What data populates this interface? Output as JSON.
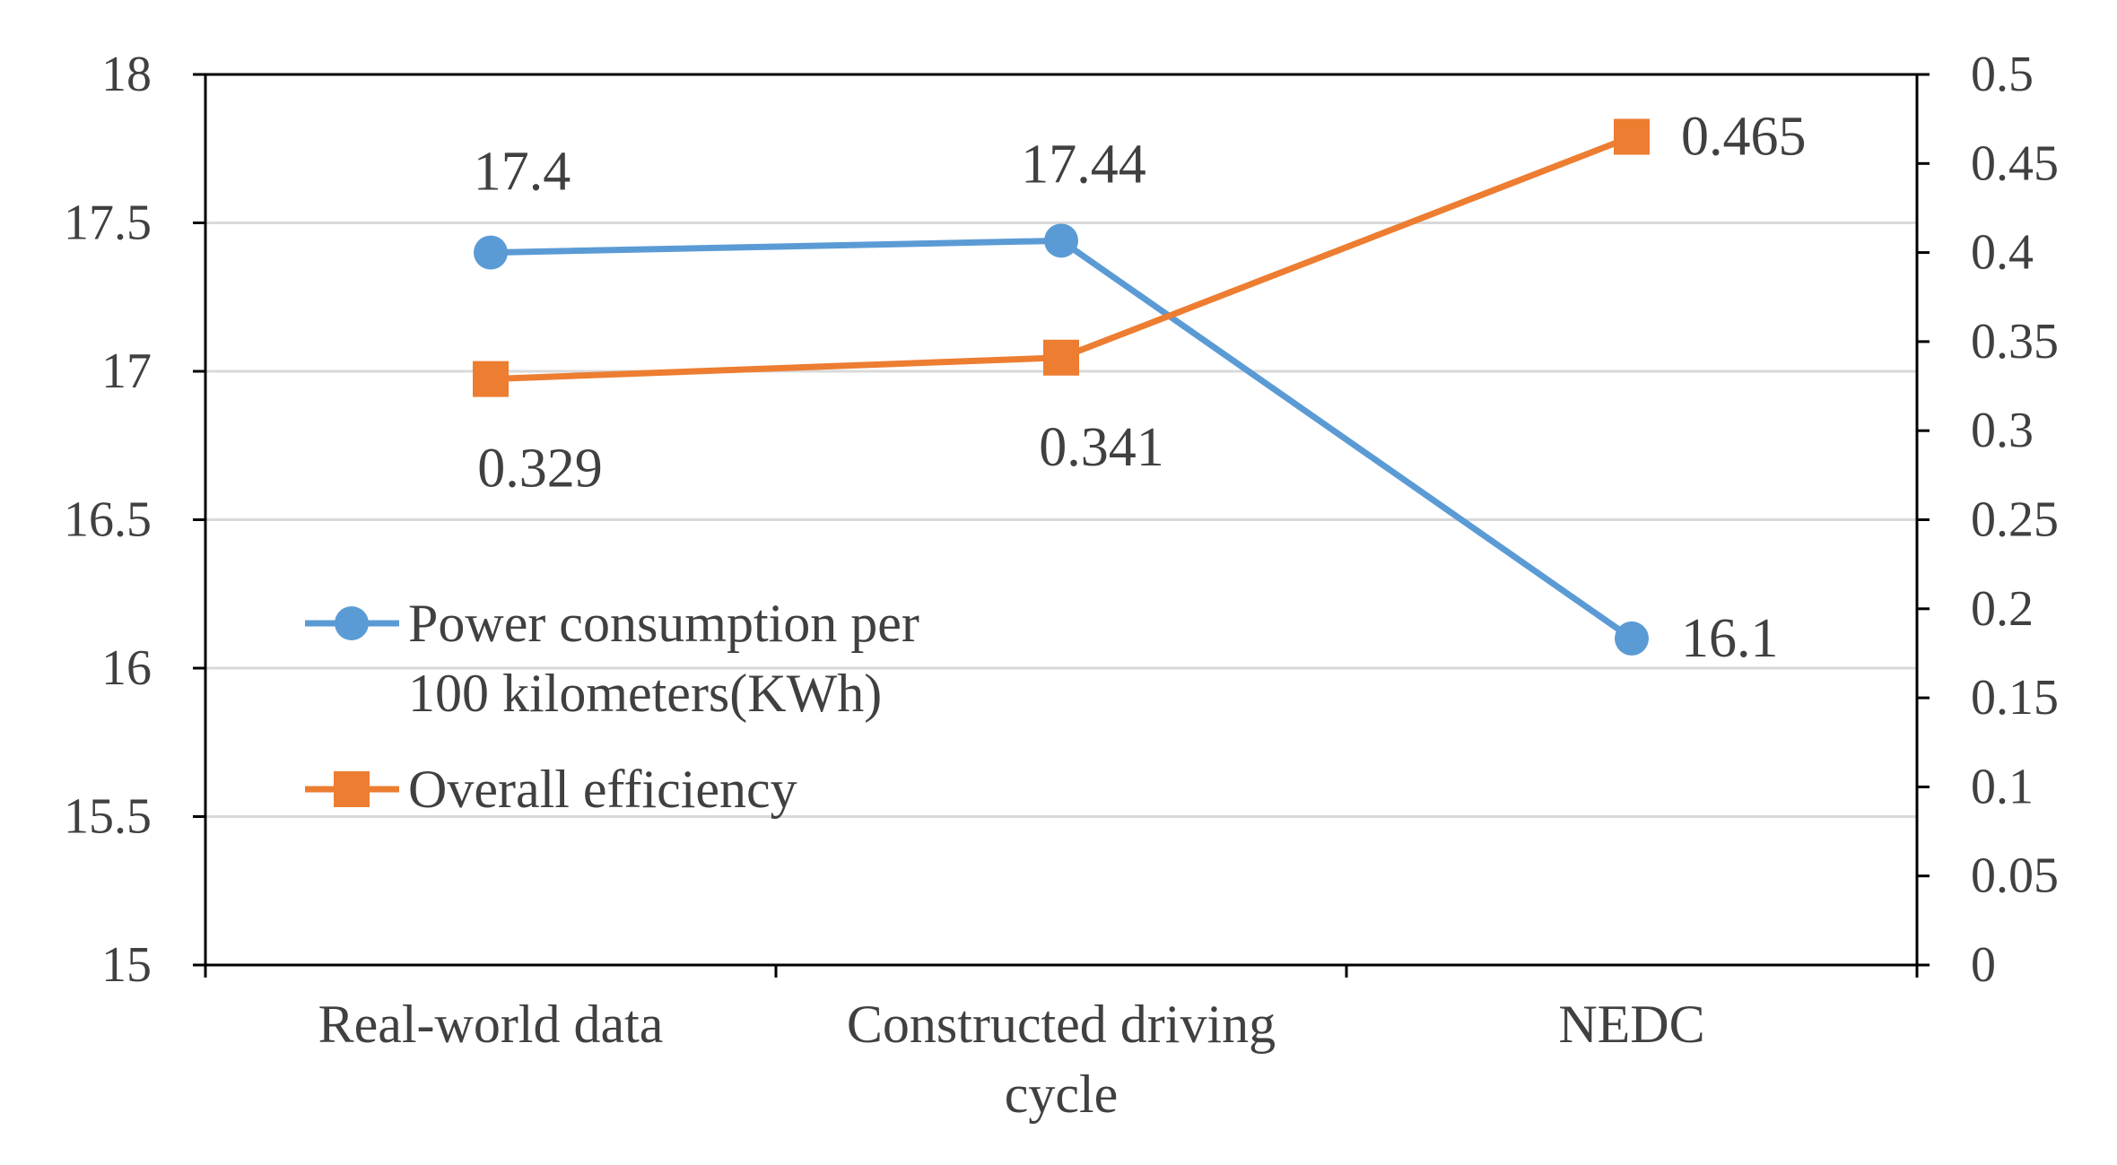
{
  "chart_data": {
    "type": "line",
    "categories": [
      [
        "Real-world data"
      ],
      [
        "Constructed driving",
        "cycle"
      ],
      [
        "NEDC"
      ]
    ],
    "y_left": {
      "min": 15,
      "max": 18,
      "step": 0.5,
      "ticks": [
        "15",
        "15.5",
        "16",
        "16.5",
        "17",
        "17.5",
        "18"
      ]
    },
    "y_right": {
      "min": 0,
      "max": 0.5,
      "step": 0.05,
      "ticks": [
        "0",
        "0.05",
        "0.1",
        "0.15",
        "0.2",
        "0.25",
        "0.3",
        "0.35",
        "0.4",
        "0.45",
        "0.5"
      ]
    },
    "series": [
      {
        "name": "Power consumption per 100 kilometers(KWh)",
        "legend_lines": [
          "Power consumption per",
          "100 kilometers(KWh)"
        ],
        "axis": "left",
        "values": [
          17.4,
          17.44,
          16.1
        ],
        "labels": [
          "17.4",
          "17.44",
          "16.1"
        ],
        "color": "#5b9bd5",
        "marker": "circle"
      },
      {
        "name": "Overall efficiency",
        "legend_lines": [
          "Overall efficiency"
        ],
        "axis": "right",
        "values": [
          0.329,
          0.341,
          0.465
        ],
        "labels": [
          "0.329",
          "0.341",
          "0.465"
        ],
        "color": "#ed7d31",
        "marker": "square"
      }
    ],
    "gridlines": true,
    "legend_position": "lower-left inside plot"
  }
}
